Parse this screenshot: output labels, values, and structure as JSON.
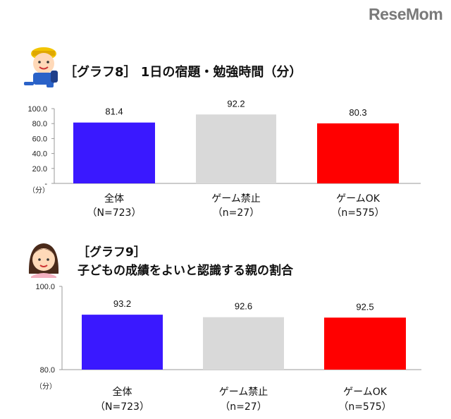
{
  "logo": "ReseMom",
  "chart_data": [
    {
      "type": "bar",
      "title": "［グラフ8］ 1日の宿題・勉強時間（分）",
      "categories": [
        "全体",
        "ゲーム禁止",
        "ゲームOK"
      ],
      "category_sublabels": [
        "（N=723）",
        "（n=27）",
        "（n=575）"
      ],
      "values": [
        81.4,
        92.2,
        80.3
      ],
      "data_labels": [
        "81.4",
        "92.2",
        "80.3"
      ],
      "colors": [
        "#3a18ff",
        "#d9d9d9",
        "#ff0000"
      ],
      "ylim": [
        0,
        100
      ],
      "yticks": [
        "100.0",
        "80.0",
        "60.0",
        "40.0",
        "20.0",
        "-"
      ],
      "yunit": "（分）",
      "grid": false,
      "legend": "none"
    },
    {
      "type": "bar",
      "title": "［グラフ9］",
      "subtitle": "子どもの成績をよいと認識する親の割合",
      "categories": [
        "全体",
        "ゲーム禁止",
        "ゲームOK"
      ],
      "category_sublabels": [
        "（N=723）",
        "（n=27）",
        "（n=575）"
      ],
      "values": [
        93.2,
        92.6,
        92.5
      ],
      "data_labels": [
        "93.2",
        "92.6",
        "92.5"
      ],
      "colors": [
        "#3a18ff",
        "#d9d9d9",
        "#ff0000"
      ],
      "ylim": [
        80,
        100
      ],
      "yticks": [
        "100.0",
        "80.0"
      ],
      "yunit": "（分）",
      "grid": false,
      "legend": "none"
    }
  ]
}
